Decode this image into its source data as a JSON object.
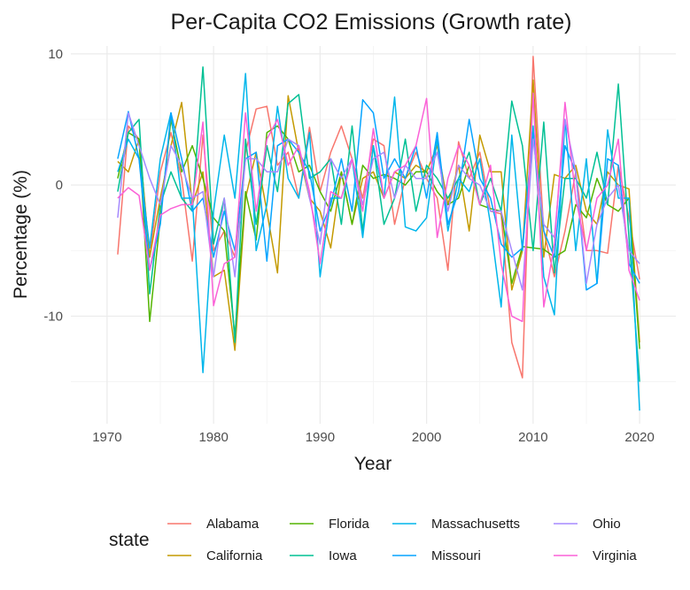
{
  "chart_data": {
    "type": "line",
    "title": "Per-Capita CO2 Emissions (Growth rate)",
    "xlabel": "Year",
    "ylabel": "Percentage (%)",
    "xlim": [
      1966.6,
      2023.4
    ],
    "ylim": [
      -18.2,
      10.6
    ],
    "xticks": [
      1970,
      1980,
      1990,
      2000,
      2010,
      2020
    ],
    "yticks": [
      -10,
      0,
      10
    ],
    "legend_title": "state",
    "legend_position": "bottom",
    "x": [
      1971,
      1972,
      1973,
      1974,
      1975,
      1976,
      1977,
      1978,
      1979,
      1980,
      1981,
      1982,
      1983,
      1984,
      1985,
      1986,
      1987,
      1988,
      1989,
      1990,
      1991,
      1992,
      1993,
      1994,
      1995,
      1996,
      1997,
      1998,
      1999,
      2000,
      2001,
      2002,
      2003,
      2004,
      2005,
      2006,
      2007,
      2008,
      2009,
      2010,
      2011,
      2012,
      2013,
      2014,
      2015,
      2016,
      2017,
      2018,
      2019,
      2020
    ],
    "series": [
      {
        "name": "Alabama",
        "color": "#F8766D",
        "values": [
          -5.3,
          4.5,
          3.5,
          -5.5,
          1.0,
          4.0,
          0.5,
          -5.8,
          3.8,
          -5.0,
          -3.5,
          -5.5,
          2.5,
          5.8,
          6.0,
          1.5,
          2.5,
          -1.0,
          4.4,
          -0.5,
          2.5,
          4.5,
          2.0,
          -1.0,
          3.5,
          3.0,
          -3.0,
          0.5,
          2.5,
          0.5,
          -1.0,
          -6.5,
          3.3,
          0.5,
          2.5,
          -2.0,
          -2.2,
          -12.0,
          -14.7,
          9.8,
          -3.5,
          -7.0,
          -3.5,
          1.0,
          -5.0,
          -5.0,
          -5.2,
          1.5,
          -2.5,
          -7.2
        ]
      },
      {
        "name": "California",
        "color": "#C49A00",
        "values": [
          1.8,
          1.0,
          3.5,
          -5.5,
          -1.0,
          3.0,
          6.3,
          -1.5,
          1.0,
          -7.0,
          -6.5,
          -12.6,
          -1.0,
          2.5,
          -2.0,
          -6.7,
          6.8,
          2.5,
          -1.0,
          -2.0,
          -4.8,
          1.0,
          -3.0,
          0.5,
          1.0,
          -1.0,
          1.0,
          0.5,
          1.5,
          1.0,
          3.0,
          -1.5,
          1.5,
          -3.5,
          3.8,
          1.0,
          1.0,
          -8.0,
          -5.0,
          8.0,
          -5.5,
          0.8,
          0.5,
          1.5,
          -2.0,
          -3.0,
          1.0,
          0.0,
          -0.3,
          -12.0
        ]
      },
      {
        "name": "Florida",
        "color": "#53B400",
        "values": [
          0.5,
          4.0,
          3.5,
          -10.4,
          -2.5,
          5.0,
          1.0,
          3.0,
          0.5,
          -2.5,
          -3.5,
          -11.5,
          -0.5,
          -4.2,
          4.0,
          4.5,
          3.5,
          1.0,
          1.5,
          -0.5,
          -2.0,
          1.0,
          -3.0,
          1.5,
          0.5,
          0.8,
          0.5,
          0.0,
          1.0,
          1.0,
          -0.5,
          -1.5,
          -1.0,
          1.5,
          -1.5,
          -1.8,
          -2.0,
          -7.5,
          -4.7,
          -4.8,
          -4.9,
          -5.5,
          -5.0,
          -1.5,
          -2.5,
          0.5,
          -1.5,
          -2.0,
          -1.0,
          -12.5
        ]
      },
      {
        "name": "Iowa",
        "color": "#00C094",
        "values": [
          -0.5,
          4.0,
          5.0,
          -8.3,
          -1.5,
          1.0,
          -1.0,
          -2.0,
          9.0,
          -4.5,
          -1.0,
          -12.0,
          3.5,
          -3.0,
          3.0,
          -0.5,
          6.2,
          6.9,
          0.5,
          1.0,
          2.0,
          -3.0,
          4.5,
          -3.5,
          3.0,
          -3.0,
          -1.0,
          3.5,
          -2.0,
          1.5,
          0.5,
          -1.0,
          0.5,
          2.5,
          -1.5,
          0.5,
          -2.0,
          6.4,
          3.0,
          -5.0,
          4.8,
          -6.7,
          0.5,
          0.5,
          -1.0,
          2.5,
          -1.5,
          7.7,
          -4.0,
          -15.0
        ]
      },
      {
        "name": "Massachusetts",
        "color": "#00B6EB",
        "values": [
          1.0,
          3.5,
          2.0,
          -4.8,
          2.0,
          5.5,
          -1.0,
          -1.0,
          -14.3,
          -2.0,
          3.8,
          -1.0,
          8.5,
          -5.0,
          -1.5,
          6.0,
          0.5,
          -1.0,
          4.0,
          -7.0,
          -1.0,
          -1.0,
          2.0,
          -4.0,
          3.0,
          -1.0,
          6.7,
          -3.2,
          -3.5,
          -2.5,
          3.5,
          -3.5,
          0.5,
          -0.5,
          2.0,
          -3.0,
          -9.3,
          3.8,
          -5.0,
          4.5,
          -7.0,
          -9.9,
          5.0,
          -5.0,
          2.0,
          -7.5,
          4.2,
          -1.0,
          -1.0,
          -17.2
        ]
      },
      {
        "name": "Missouri",
        "color": "#06A4FF",
        "values": [
          2.0,
          5.6,
          2.0,
          -6.5,
          -3.0,
          5.5,
          2.0,
          -2.0,
          -1.0,
          -5.5,
          -2.0,
          -5.0,
          2.0,
          2.5,
          -5.8,
          3.0,
          3.5,
          2.5,
          1.0,
          -3.5,
          -1.5,
          2.0,
          -2.0,
          6.5,
          5.5,
          0.5,
          2.0,
          0.5,
          3.0,
          -1.0,
          4.0,
          -3.0,
          -0.5,
          5.0,
          0.5,
          -1.0,
          -4.5,
          -5.5,
          -4.8,
          4.0,
          -3.5,
          -5.5,
          3.0,
          1.0,
          -8.0,
          -7.5,
          2.0,
          1.5,
          -6.0,
          -7.5
        ]
      },
      {
        "name": "Ohio",
        "color": "#A58AFF",
        "values": [
          -2.5,
          5.5,
          3.0,
          0.5,
          -1.5,
          3.0,
          1.5,
          -1.0,
          -0.5,
          -7.0,
          -1.0,
          -7.0,
          2.0,
          2.0,
          1.0,
          1.0,
          3.5,
          3.0,
          -1.0,
          -4.5,
          2.0,
          0.5,
          2.0,
          -1.5,
          2.0,
          2.5,
          -1.0,
          1.5,
          0.5,
          0.5,
          2.5,
          -2.0,
          1.5,
          0.5,
          0.0,
          -2.0,
          -2.0,
          -5.0,
          -8.0,
          3.5,
          -3.0,
          -4.0,
          5.0,
          1.0,
          -7.5,
          -3.0,
          -1.0,
          0.0,
          -5.0,
          -6.0
        ]
      },
      {
        "name": "Virginia",
        "color": "#FB61D7",
        "values": [
          -1.0,
          -0.2,
          -0.8,
          -6.5,
          -2.3,
          -1.8,
          -1.5,
          -1.5,
          4.8,
          -9.2,
          -6.0,
          -5.5,
          5.5,
          -2.0,
          3.5,
          5.0,
          1.5,
          3.0,
          -0.5,
          -6.0,
          -0.5,
          -1.0,
          2.0,
          -2.0,
          4.3,
          -1.0,
          1.0,
          1.5,
          3.0,
          6.6,
          -4.0,
          0.5,
          3.0,
          1.5,
          -1.5,
          1.5,
          -6.0,
          -10.0,
          -10.4,
          7.0,
          -9.3,
          -4.5,
          6.3,
          -1.0,
          -5.0,
          -1.0,
          0.0,
          3.5,
          -6.5,
          -8.8
        ]
      }
    ]
  }
}
